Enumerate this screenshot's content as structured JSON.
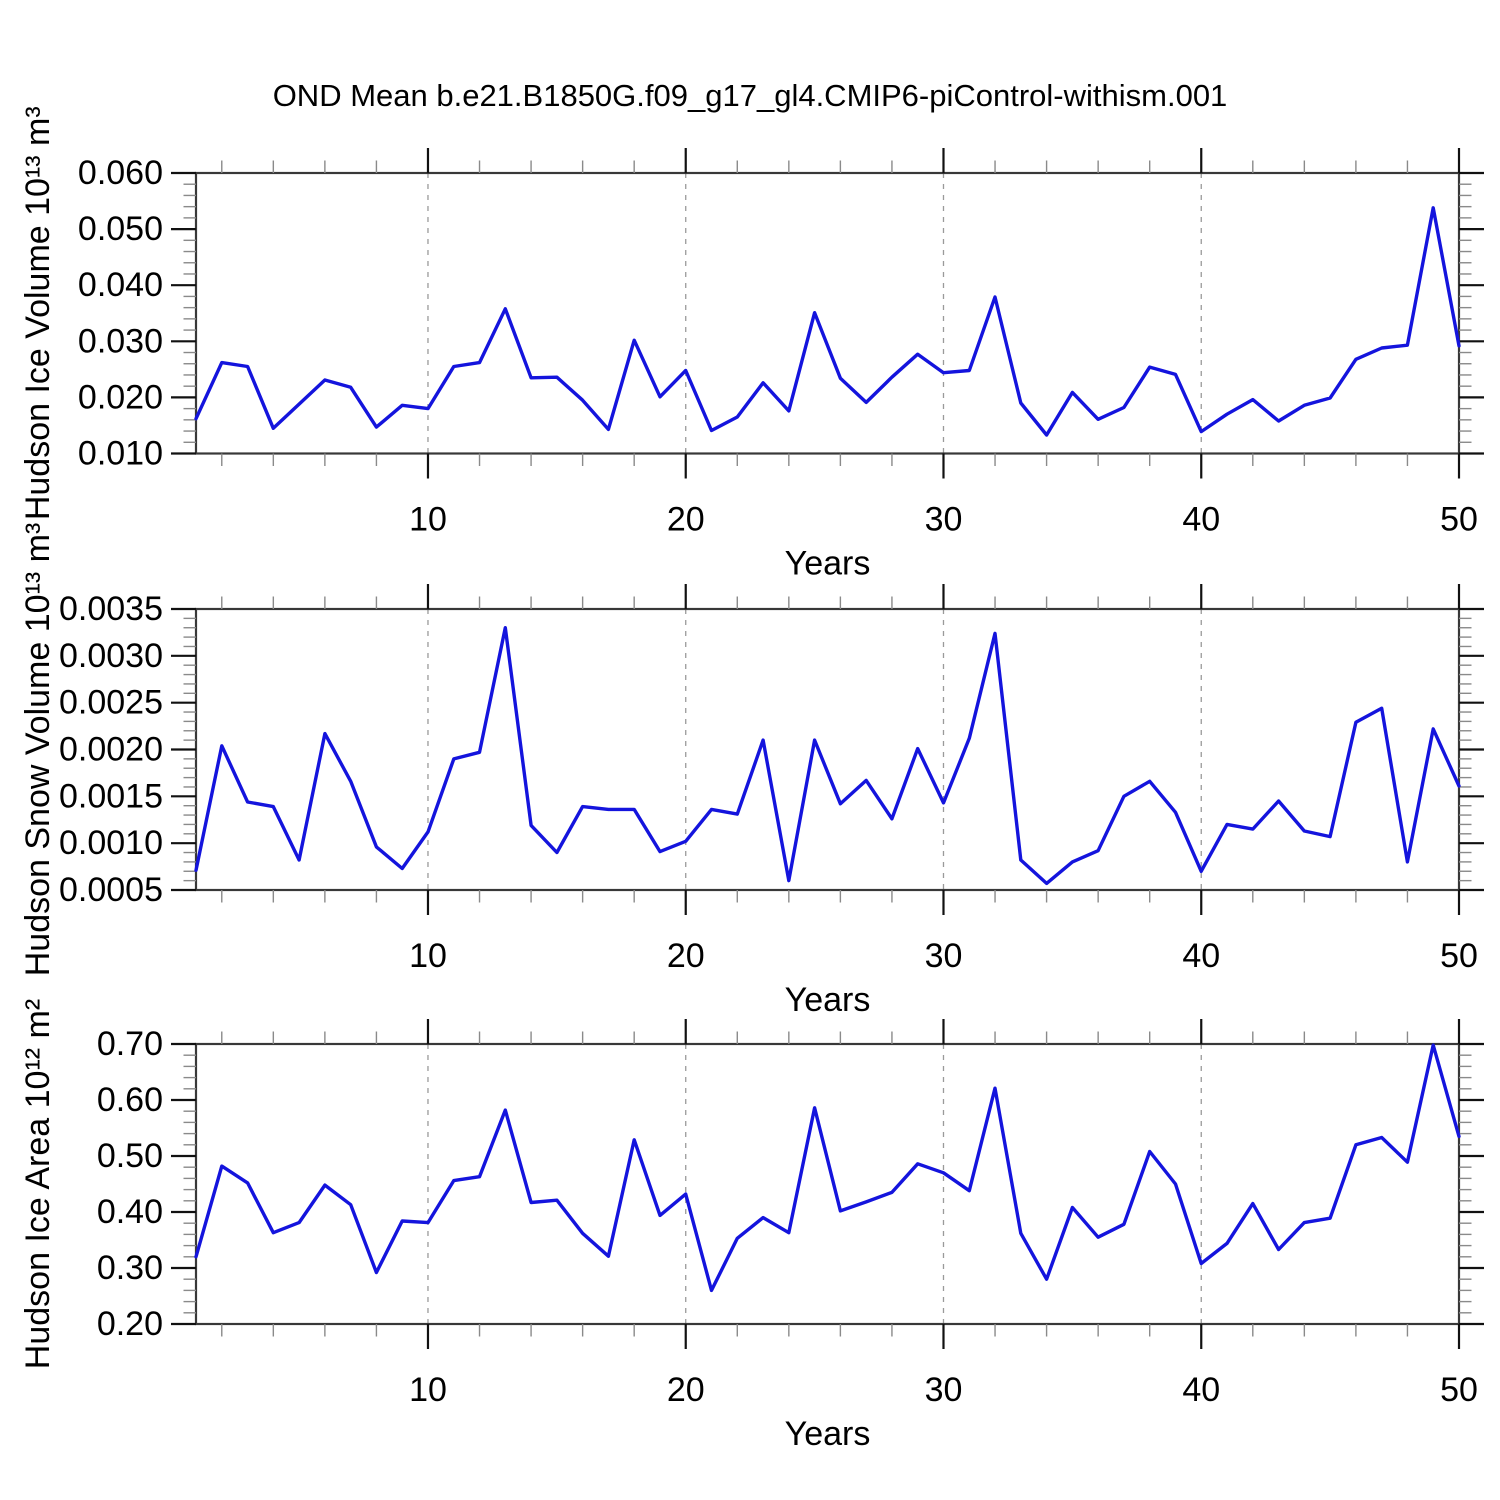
{
  "title": "OND Mean b.e21.B1850G.f09_g17_gl4.CMIP6-piControl-withism.001",
  "line_color": "#1414dd",
  "chart_data": [
    {
      "type": "line",
      "name": "hudson-ice-volume",
      "ylabel": "Hudson Ice Volume 10¹³ m³",
      "xlabel": "Years",
      "x_range": [
        1,
        50
      ],
      "xticks": [
        10,
        20,
        30,
        40,
        50
      ],
      "x_minor_step": 2,
      "grid_x": [
        10,
        20,
        30,
        40
      ],
      "ylim": [
        0.01,
        0.06
      ],
      "ytick_step": 0.01,
      "ytick_decimals": 3,
      "grid": "vertical-dashed",
      "legend": "none",
      "values": [
        0.0162,
        0.0262,
        0.0255,
        0.0145,
        0.0188,
        0.0231,
        0.0218,
        0.0147,
        0.0186,
        0.018,
        0.0255,
        0.0262,
        0.0358,
        0.0235,
        0.0236,
        0.0195,
        0.0143,
        0.0302,
        0.0201,
        0.0248,
        0.0141,
        0.0165,
        0.0226,
        0.0176,
        0.0351,
        0.0234,
        0.0191,
        0.0236,
        0.0277,
        0.0244,
        0.0248,
        0.0379,
        0.019,
        0.0133,
        0.0209,
        0.0161,
        0.0182,
        0.0254,
        0.0241,
        0.0139,
        0.017,
        0.0196,
        0.0158,
        0.0186,
        0.0199,
        0.0268,
        0.0288,
        0.0293,
        0.0538,
        0.0292
      ]
    },
    {
      "type": "line",
      "name": "hudson-snow-volume",
      "ylabel": "Hudson Snow Volume 10¹³ m³",
      "xlabel": "Years",
      "x_range": [
        1,
        50
      ],
      "xticks": [
        10,
        20,
        30,
        40,
        50
      ],
      "x_minor_step": 2,
      "grid_x": [
        10,
        20,
        30,
        40
      ],
      "ylim": [
        0.0005,
        0.0035
      ],
      "ytick_step": 0.0005,
      "ytick_decimals": 4,
      "grid": "vertical-dashed",
      "legend": "none",
      "values": [
        0.00071,
        0.00204,
        0.00144,
        0.00139,
        0.00082,
        0.00217,
        0.00166,
        0.00096,
        0.00073,
        0.00112,
        0.0019,
        0.00197,
        0.0033,
        0.00119,
        0.0009,
        0.00139,
        0.00136,
        0.00136,
        0.00091,
        0.00102,
        0.00136,
        0.00131,
        0.0021,
        0.0006,
        0.0021,
        0.00142,
        0.00167,
        0.00126,
        0.00201,
        0.00143,
        0.00212,
        0.00324,
        0.00082,
        0.00057,
        0.0008,
        0.00092,
        0.0015,
        0.00166,
        0.00133,
        0.0007,
        0.0012,
        0.00115,
        0.00145,
        0.00113,
        0.00107,
        0.00229,
        0.00244,
        0.0008,
        0.00222,
        0.00161
      ]
    },
    {
      "type": "line",
      "name": "hudson-ice-area",
      "ylabel": "Hudson Ice Area 10¹² m²",
      "xlabel": "Years",
      "x_range": [
        1,
        50
      ],
      "xticks": [
        10,
        20,
        30,
        40,
        50
      ],
      "x_minor_step": 2,
      "grid_x": [
        10,
        20,
        30,
        40
      ],
      "ylim": [
        0.2,
        0.7
      ],
      "ytick_step": 0.1,
      "ytick_decimals": 2,
      "grid": "vertical-dashed",
      "legend": "none",
      "values": [
        0.32,
        0.482,
        0.452,
        0.363,
        0.381,
        0.448,
        0.413,
        0.292,
        0.384,
        0.381,
        0.456,
        0.463,
        0.582,
        0.417,
        0.421,
        0.362,
        0.321,
        0.529,
        0.394,
        0.432,
        0.26,
        0.353,
        0.39,
        0.363,
        0.586,
        0.402,
        0.418,
        0.435,
        0.486,
        0.47,
        0.438,
        0.621,
        0.362,
        0.28,
        0.408,
        0.355,
        0.378,
        0.508,
        0.45,
        0.308,
        0.344,
        0.415,
        0.333,
        0.381,
        0.389,
        0.52,
        0.533,
        0.489,
        0.698,
        0.535
      ]
    }
  ]
}
